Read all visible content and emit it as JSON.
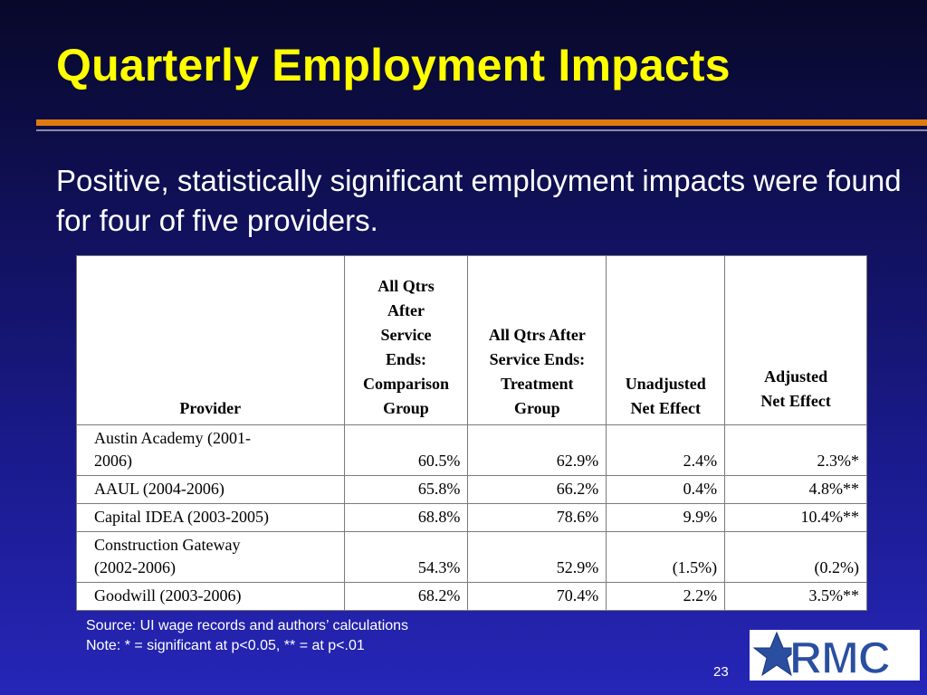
{
  "title": "Quarterly Employment Impacts",
  "intro": "Positive, statistically significant employment impacts were found for four of five providers.",
  "table": {
    "headers": [
      [
        "Provider"
      ],
      [
        "All Qtrs",
        "After",
        "Service",
        "Ends:",
        "Comparison",
        "Group"
      ],
      [
        "All Qtrs After",
        "Service Ends:",
        "Treatment",
        "Group"
      ],
      [
        "Unadjusted",
        "Net Effect"
      ],
      [
        "Adjusted",
        "Net Effect"
      ]
    ],
    "rows": [
      {
        "provider": [
          "Austin Academy (2001-",
          "2006)"
        ],
        "comparison": "60.5%",
        "treatment": "62.9%",
        "unadjusted": "2.4%",
        "adjusted": "2.3%*"
      },
      {
        "provider": [
          "AAUL (2004-2006)"
        ],
        "comparison": "65.8%",
        "treatment": "66.2%",
        "unadjusted": "0.4%",
        "adjusted": "4.8%**"
      },
      {
        "provider": [
          "Capital IDEA (2003-2005)"
        ],
        "comparison": "68.8%",
        "treatment": "78.6%",
        "unadjusted": "9.9%",
        "adjusted": "10.4%**"
      },
      {
        "provider": [
          "Construction Gateway",
          "(2002-2006)"
        ],
        "comparison": "54.3%",
        "treatment": "52.9%",
        "unadjusted": "(1.5%)",
        "adjusted": "(0.2%)"
      },
      {
        "provider": [
          "Goodwill (2003-2006)"
        ],
        "comparison": "68.2%",
        "treatment": "70.4%",
        "unadjusted": "2.2%",
        "adjusted": "3.5%**"
      }
    ]
  },
  "footnotes": {
    "source": "Source: UI wage records and authors’ calculations",
    "note": "Note: * = significant at p<0.05, ** = at p<.01"
  },
  "page_number": "23",
  "logo": {
    "text": "RMC",
    "icon": "star-icon",
    "color": "#2a4fa0"
  },
  "colors": {
    "title": "#ffff00",
    "accent_rule": "#e07a10",
    "text": "#ffffff",
    "background_top": "#08082a",
    "background_bottom": "#2626b8"
  }
}
